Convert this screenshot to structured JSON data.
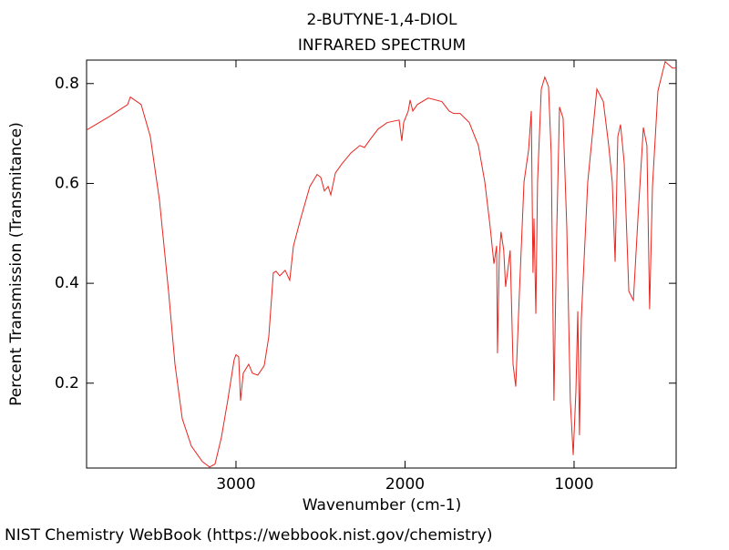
{
  "chart_data": {
    "type": "line",
    "title": "2-BUTYNE-1,4-DIOL",
    "subtitle": "INFRARED SPECTRUM",
    "x_label": "Wavenumber (cm-1)",
    "y_label": "Percent Transmission (Transmitance)",
    "xlim": [
      3884,
      396
    ],
    "ylim": [
      0.03,
      0.847
    ],
    "xticks": [
      3000,
      2000,
      1000
    ],
    "yticks": [
      0.2,
      0.4,
      0.6,
      0.8
    ],
    "x": [
      3884,
      3749,
      3641,
      3625,
      3561,
      3507,
      3453,
      3399,
      3361,
      3318,
      3264,
      3199,
      3156,
      3124,
      3086,
      3049,
      3011,
      3000,
      2984,
      2973,
      2957,
      2925,
      2903,
      2871,
      2833,
      2806,
      2779,
      2763,
      2741,
      2709,
      2682,
      2660,
      2617,
      2563,
      2520,
      2498,
      2477,
      2455,
      2439,
      2412,
      2374,
      2320,
      2267,
      2240,
      2213,
      2159,
      2105,
      2035,
      2019,
      2008,
      1981,
      1970,
      1954,
      1927,
      1863,
      1782,
      1739,
      1712,
      1674,
      1620,
      1566,
      1528,
      1496,
      1474,
      1458,
      1453,
      1442,
      1432,
      1416,
      1405,
      1394,
      1378,
      1361,
      1345,
      1323,
      1296,
      1269,
      1253,
      1243,
      1237,
      1226,
      1216,
      1194,
      1173,
      1151,
      1135,
      1119,
      1102,
      1086,
      1065,
      1043,
      1022,
      1005,
      989,
      978,
      968,
      957,
      919,
      865,
      827,
      795,
      774,
      757,
      741,
      725,
      703,
      676,
      649,
      622,
      590,
      569,
      553,
      536,
      504,
      461,
      418,
      396
    ],
    "series": [
      {
        "color": "#e8251e",
        "values": [
          0.707,
          0.734,
          0.758,
          0.773,
          0.758,
          0.694,
          0.567,
          0.384,
          0.238,
          0.129,
          0.074,
          0.043,
          0.032,
          0.038,
          0.092,
          0.165,
          0.247,
          0.257,
          0.253,
          0.165,
          0.22,
          0.238,
          0.22,
          0.216,
          0.235,
          0.293,
          0.421,
          0.424,
          0.415,
          0.426,
          0.406,
          0.475,
          0.53,
          0.594,
          0.618,
          0.612,
          0.585,
          0.594,
          0.577,
          0.621,
          0.639,
          0.661,
          0.676,
          0.672,
          0.685,
          0.709,
          0.722,
          0.727,
          0.685,
          0.722,
          0.745,
          0.767,
          0.745,
          0.758,
          0.771,
          0.764,
          0.745,
          0.74,
          0.74,
          0.722,
          0.676,
          0.603,
          0.512,
          0.439,
          0.475,
          0.26,
          0.457,
          0.503,
          0.466,
          0.393,
          0.421,
          0.466,
          0.238,
          0.193,
          0.384,
          0.603,
          0.667,
          0.745,
          0.421,
          0.53,
          0.339,
          0.603,
          0.789,
          0.813,
          0.794,
          0.658,
          0.165,
          0.512,
          0.753,
          0.731,
          0.512,
          0.165,
          0.056,
          0.184,
          0.344,
          0.096,
          0.329,
          0.603,
          0.789,
          0.764,
          0.676,
          0.603,
          0.443,
          0.694,
          0.718,
          0.64,
          0.384,
          0.366,
          0.53,
          0.712,
          0.676,
          0.348,
          0.594,
          0.785,
          0.844,
          0.831,
          0.831
        ]
      }
    ]
  },
  "footer": "NIST Chemistry WebBook (https://webbook.nist.gov/chemistry)"
}
